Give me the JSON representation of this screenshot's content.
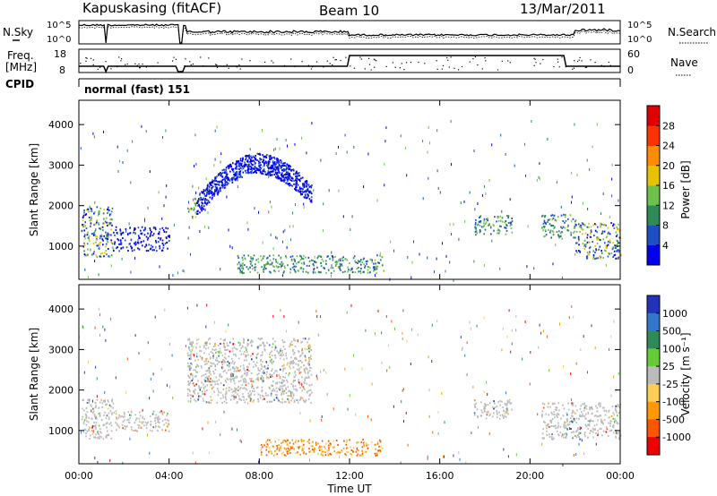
{
  "header": {
    "station": "Kapuskasing (fitACF)",
    "beam": "Beam 10",
    "date": "13/Mar/2011"
  },
  "strip_labels": {
    "nsky": "N.Sky",
    "nsky_top": "10^5",
    "nsky_bot": "10^0",
    "nsearch": "N.Search",
    "nsearch_top": "10^5",
    "nsearch_bot": "10^0",
    "freq_line1": "Freq.",
    "freq_line2": "[MHz]",
    "freq_top": "18",
    "freq_bot": "8",
    "nave": "Nave",
    "nave_top": "60",
    "nave_bot": "0",
    "cpid": "CPID",
    "mode": "normal (fast) 151"
  },
  "chart_data": [
    {
      "type": "heatmap",
      "name": "power-panel",
      "ylabel": "Slant Range [km]",
      "xlabel": "Time UT",
      "xlim_hours": [
        0,
        24
      ],
      "ylim_km": [
        180,
        4600
      ],
      "y_ticks": [
        "1000",
        "2000",
        "3000",
        "4000"
      ],
      "x_ticks": [
        "00:00",
        "04:00",
        "08:00",
        "12:00",
        "16:00",
        "20:00",
        "00:00"
      ],
      "colorbar": {
        "label": "Power [dB]",
        "ticks": [
          "4",
          "8",
          "12",
          "16",
          "20",
          "24",
          "28"
        ],
        "colors": [
          "#0000ee",
          "#1d4fc4",
          "#2e8b57",
          "#6cc24a",
          "#e6c200",
          "#ff8c00",
          "#ff3300",
          "#e00000"
        ]
      },
      "echo_regions": [
        {
          "t0": 0.1,
          "t1": 1.5,
          "r0": 750,
          "r1": 2000,
          "level": "mixed"
        },
        {
          "t0": 1.5,
          "t1": 4.0,
          "r0": 900,
          "r1": 1500,
          "level": "low"
        },
        {
          "t0": 4.8,
          "t1": 5.2,
          "r0": 1700,
          "r1": 2200,
          "level": "high"
        },
        {
          "t0": 5.2,
          "t1": 10.3,
          "r0": 1900,
          "r1": 3400,
          "level": "low"
        },
        {
          "t0": 7.0,
          "t1": 13.5,
          "r0": 350,
          "r1": 800,
          "level": "mid"
        },
        {
          "t0": 17.5,
          "t1": 19.2,
          "r0": 1300,
          "r1": 1800,
          "level": "mid"
        },
        {
          "t0": 20.5,
          "t1": 22.0,
          "r0": 1200,
          "r1": 1800,
          "level": "mid"
        },
        {
          "t0": 22.0,
          "t1": 24.0,
          "r0": 700,
          "r1": 1600,
          "level": "mixed"
        }
      ]
    },
    {
      "type": "heatmap",
      "name": "velocity-panel",
      "ylabel": "Slant Range [km]",
      "xlabel": "Time UT",
      "xlim_hours": [
        0,
        24
      ],
      "ylim_km": [
        180,
        4600
      ],
      "y_ticks": [
        "1000",
        "2000",
        "3000",
        "4000"
      ],
      "x_ticks": [
        "00:00",
        "04:00",
        "08:00",
        "12:00",
        "16:00",
        "20:00",
        "00:00"
      ],
      "colorbar": {
        "label": "Velocity [m s⁻¹]",
        "ticks": [
          "1000",
          "500",
          "100",
          "25",
          "-25",
          "-100",
          "-500",
          "-1000"
        ],
        "colors": [
          "#2233bb",
          "#3377cc",
          "#2e8b57",
          "#66cc33",
          "#bbbbbb",
          "#ffcc55",
          "#ff9900",
          "#ff5500",
          "#ee0000"
        ]
      },
      "echo_regions": [
        {
          "t0": 0.1,
          "t1": 1.5,
          "r0": 800,
          "r1": 1800,
          "level": "ground"
        },
        {
          "t0": 1.5,
          "t1": 4.0,
          "r0": 1000,
          "r1": 1500,
          "level": "ground"
        },
        {
          "t0": 4.8,
          "t1": 10.3,
          "r0": 1700,
          "r1": 3300,
          "level": "ground"
        },
        {
          "t0": 8.0,
          "t1": 13.5,
          "r0": 400,
          "r1": 800,
          "level": "neg"
        },
        {
          "t0": 17.5,
          "t1": 19.2,
          "r0": 1300,
          "r1": 1800,
          "level": "ground"
        },
        {
          "t0": 20.5,
          "t1": 24.0,
          "r0": 800,
          "r1": 1700,
          "level": "ground"
        }
      ]
    }
  ]
}
